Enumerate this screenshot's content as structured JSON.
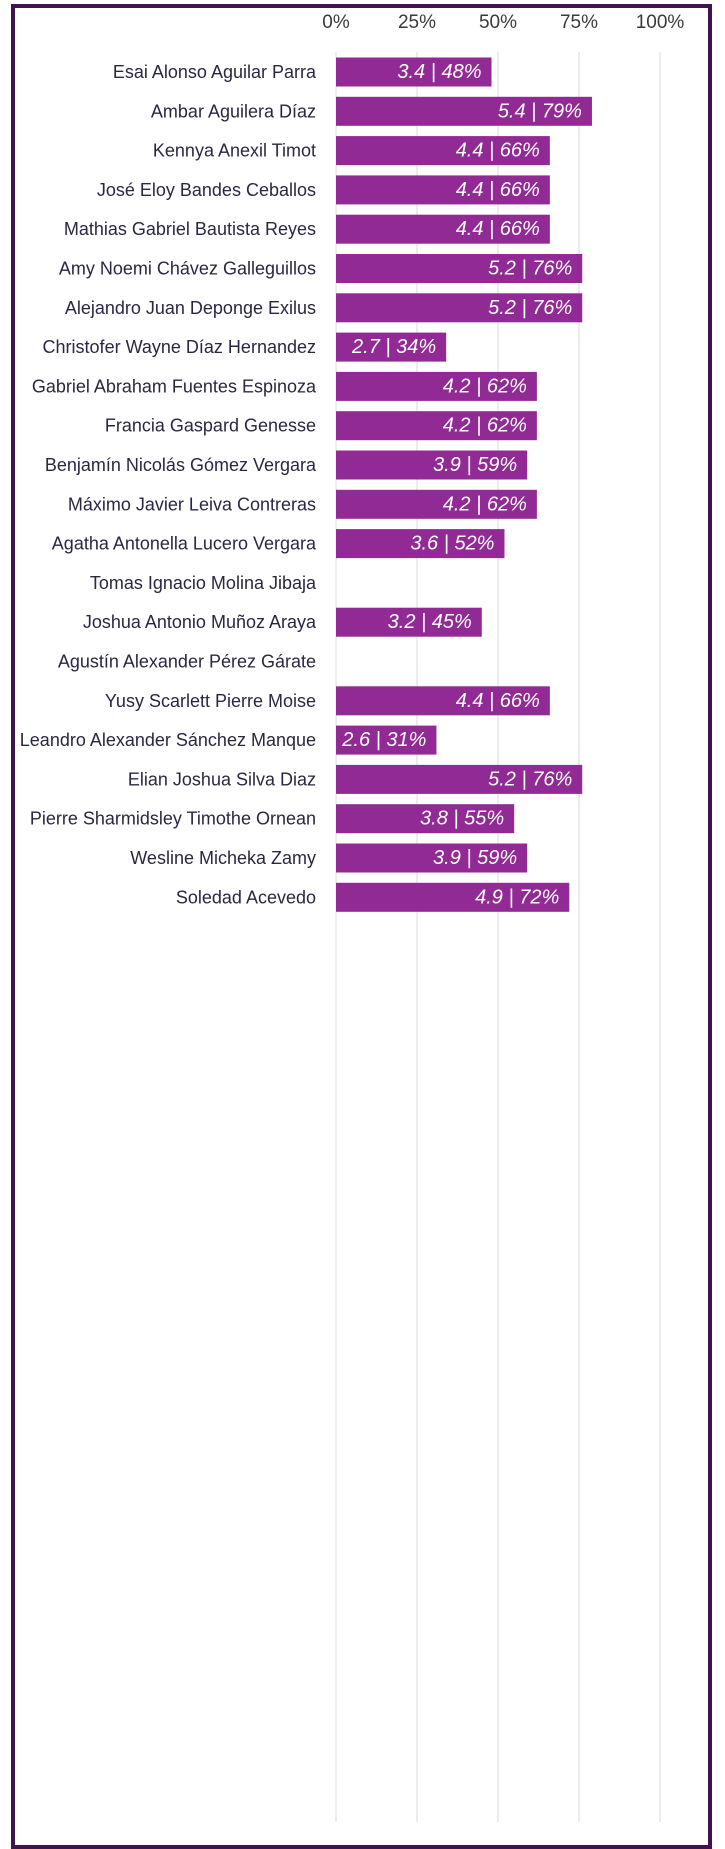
{
  "chart_data": {
    "type": "bar",
    "orientation": "horizontal",
    "title": "",
    "xlabel": "",
    "ylabel": "",
    "xlim": [
      0,
      100
    ],
    "x_ticks": [
      "0%",
      "25%",
      "50%",
      "75%",
      "100%"
    ],
    "grid": true,
    "legend": "none",
    "bar_color": "#912a94",
    "categories": [
      "Esai Alonso Aguilar Parra",
      "Ambar  Aguilera Díaz",
      "Kennya Anexil Timot",
      "José Eloy Bandes  Ceballos",
      "Mathias Gabriel Bautista Reyes",
      "Amy Noemi Chávez Galleguillos",
      "Alejandro Juan  Deponge Exilus",
      "Christofer Wayne  Díaz  Hernandez",
      "Gabriel Abraham Fuentes  Espinoza",
      "Francia Gaspard Genesse",
      "Benjamín Nicolás  Gómez  Vergara",
      "Máximo Javier Leiva Contreras",
      "Agatha Antonella Lucero Vergara",
      "Tomas Ignacio  Molina  Jibaja",
      "Joshua Antonio Muñoz  Araya",
      "Agustín Alexander  Pérez  Gárate",
      "Yusy Scarlett  Pierre  Moise",
      "Leandro Alexander  Sánchez  Manque",
      "Elian Joshua Silva  Diaz",
      "Pierre Sharmidsley Timothe Ornean",
      "Wesline Micheka Zamy",
      "Soledad Acevedo"
    ],
    "values": [
      48,
      79,
      66,
      66,
      66,
      76,
      76,
      34,
      62,
      62,
      59,
      62,
      52,
      null,
      45,
      null,
      66,
      31,
      76,
      55,
      59,
      72
    ],
    "data_labels": [
      "3.4 | 48%",
      "5.4 | 79%",
      "4.4 | 66%",
      "4.4 | 66%",
      "4.4 | 66%",
      "5.2 | 76%",
      "5.2 | 76%",
      "2.7 | 34%",
      "4.2 | 62%",
      "4.2 | 62%",
      "3.9 | 59%",
      "4.2 | 62%",
      "3.6 | 52%",
      "",
      "3.2 | 45%",
      "",
      "4.4 | 66%",
      "2.6 | 31%",
      "5.2 | 76%",
      "3.8 | 55%",
      "3.9 | 59%",
      "4.9 | 72%"
    ]
  }
}
